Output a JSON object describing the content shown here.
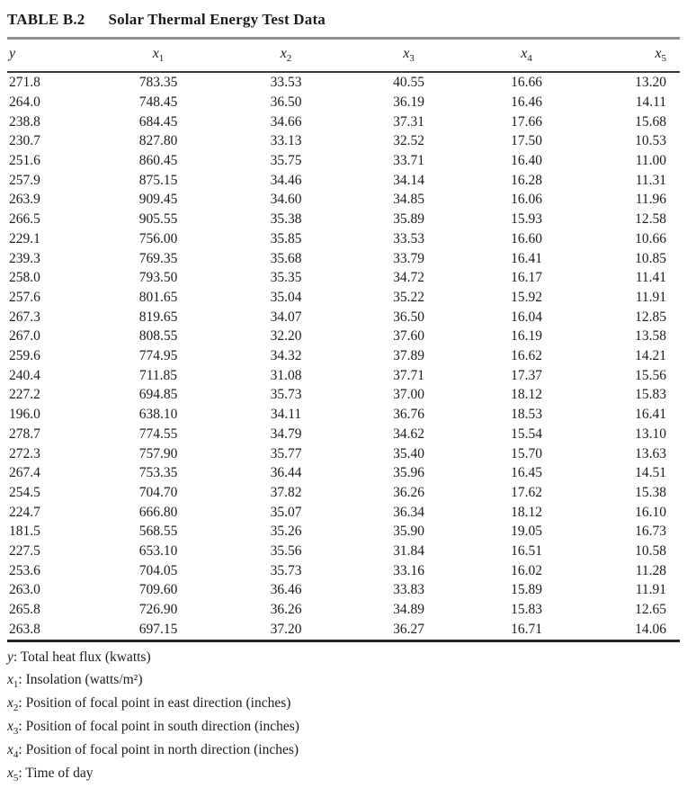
{
  "page": {
    "label": "TABLE B.2",
    "title": "Solar Thermal Energy Test Data"
  },
  "table": {
    "columns": [
      {
        "base": "y",
        "sub": ""
      },
      {
        "base": "x",
        "sub": "1"
      },
      {
        "base": "x",
        "sub": "2"
      },
      {
        "base": "x",
        "sub": "3"
      },
      {
        "base": "x",
        "sub": "4"
      },
      {
        "base": "x",
        "sub": "5"
      }
    ],
    "rows": [
      [
        "271.8",
        "783.35",
        "33.53",
        "40.55",
        "16.66",
        "13.20"
      ],
      [
        "264.0",
        "748.45",
        "36.50",
        "36.19",
        "16.46",
        "14.11"
      ],
      [
        "238.8",
        "684.45",
        "34.66",
        "37.31",
        "17.66",
        "15.68"
      ],
      [
        "230.7",
        "827.80",
        "33.13",
        "32.52",
        "17.50",
        "10.53"
      ],
      [
        "251.6",
        "860.45",
        "35.75",
        "33.71",
        "16.40",
        "11.00"
      ],
      [
        "257.9",
        "875.15",
        "34.46",
        "34.14",
        "16.28",
        "11.31"
      ],
      [
        "263.9",
        "909.45",
        "34.60",
        "34.85",
        "16.06",
        "11.96"
      ],
      [
        "266.5",
        "905.55",
        "35.38",
        "35.89",
        "15.93",
        "12.58"
      ],
      [
        "229.1",
        "756.00",
        "35.85",
        "33.53",
        "16.60",
        "10.66"
      ],
      [
        "239.3",
        "769.35",
        "35.68",
        "33.79",
        "16.41",
        "10.85"
      ],
      [
        "258.0",
        "793.50",
        "35.35",
        "34.72",
        "16.17",
        "11.41"
      ],
      [
        "257.6",
        "801.65",
        "35.04",
        "35.22",
        "15.92",
        "11.91"
      ],
      [
        "267.3",
        "819.65",
        "34.07",
        "36.50",
        "16.04",
        "12.85"
      ],
      [
        "267.0",
        "808.55",
        "32.20",
        "37.60",
        "16.19",
        "13.58"
      ],
      [
        "259.6",
        "774.95",
        "34.32",
        "37.89",
        "16.62",
        "14.21"
      ],
      [
        "240.4",
        "711.85",
        "31.08",
        "37.71",
        "17.37",
        "15.56"
      ],
      [
        "227.2",
        "694.85",
        "35.73",
        "37.00",
        "18.12",
        "15.83"
      ],
      [
        "196.0",
        "638.10",
        "34.11",
        "36.76",
        "18.53",
        "16.41"
      ],
      [
        "278.7",
        "774.55",
        "34.79",
        "34.62",
        "15.54",
        "13.10"
      ],
      [
        "272.3",
        "757.90",
        "35.77",
        "35.40",
        "15.70",
        "13.63"
      ],
      [
        "267.4",
        "753.35",
        "36.44",
        "35.96",
        "16.45",
        "14.51"
      ],
      [
        "254.5",
        "704.70",
        "37.82",
        "36.26",
        "17.62",
        "15.38"
      ],
      [
        "224.7",
        "666.80",
        "35.07",
        "36.34",
        "18.12",
        "16.10"
      ],
      [
        "181.5",
        "568.55",
        "35.26",
        "35.90",
        "19.05",
        "16.73"
      ],
      [
        "227.5",
        "653.10",
        "35.56",
        "31.84",
        "16.51",
        "10.58"
      ],
      [
        "253.6",
        "704.05",
        "35.73",
        "33.16",
        "16.02",
        "11.28"
      ],
      [
        "263.0",
        "709.60",
        "36.46",
        "33.83",
        "15.89",
        "11.91"
      ],
      [
        "265.8",
        "726.90",
        "36.26",
        "34.89",
        "15.83",
        "12.65"
      ],
      [
        "263.8",
        "697.15",
        "37.20",
        "36.27",
        "16.71",
        "14.06"
      ]
    ]
  },
  "footnotes": [
    {
      "base": "y",
      "sub": "",
      "text": ": Total heat flux (kwatts)"
    },
    {
      "base": "x",
      "sub": "1",
      "text": ": Insolation (watts/m²)"
    },
    {
      "base": "x",
      "sub": "2",
      "text": ": Position of focal point in east direction (inches)"
    },
    {
      "base": "x",
      "sub": "3",
      "text": ": Position of focal point in south direction (inches)"
    },
    {
      "base": "x",
      "sub": "4",
      "text": ": Position of focal point in north direction (inches)"
    },
    {
      "base": "x",
      "sub": "5",
      "text": ": Time of day"
    }
  ],
  "colors": {
    "text": "#1c1c1c",
    "rule_gray": "#8f8f8f",
    "rule_dark": "#242424"
  }
}
